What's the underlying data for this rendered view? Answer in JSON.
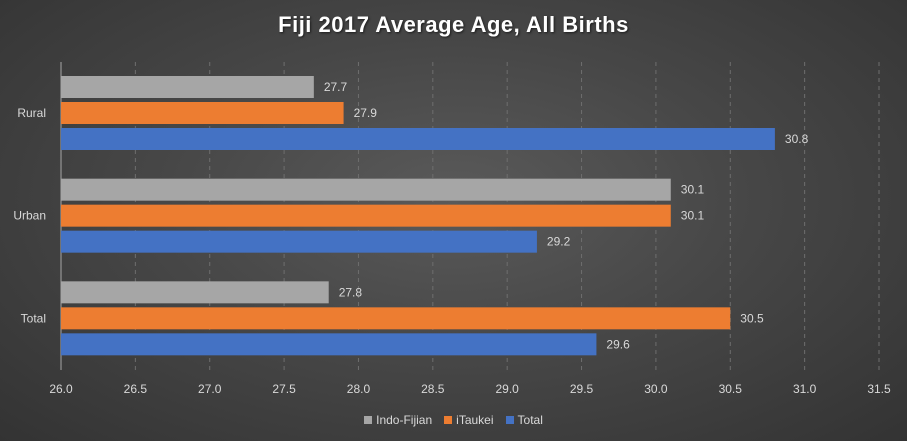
{
  "chart_data": {
    "type": "bar",
    "orientation": "horizontal",
    "title": "Fiji 2017 Average Age, All Births",
    "categories": [
      "Rural",
      "Urban",
      "Total"
    ],
    "series": [
      {
        "name": "Indo-Fijian",
        "color": "#a6a6a6",
        "values": [
          27.7,
          30.1,
          27.8
        ]
      },
      {
        "name": "iTaukei",
        "color": "#ed7d31",
        "values": [
          27.9,
          30.1,
          30.5
        ]
      },
      {
        "name": "Total",
        "color": "#4472c4",
        "values": [
          30.8,
          29.2,
          29.6
        ]
      }
    ],
    "data_labels": [
      [
        "27.7",
        "30.1",
        "27.8"
      ],
      [
        "27.9",
        "30.1",
        "30.5"
      ],
      [
        "30.8",
        "29.2",
        "29.6"
      ]
    ],
    "xlim": [
      26.0,
      31.5
    ],
    "xticks": [
      "26.0",
      "26.5",
      "27.0",
      "27.5",
      "28.0",
      "28.5",
      "29.0",
      "29.5",
      "30.0",
      "30.5",
      "31.0",
      "31.5"
    ],
    "xlabel": "",
    "ylabel": "",
    "grid": "vertical-dashed",
    "legend": "bottom"
  }
}
